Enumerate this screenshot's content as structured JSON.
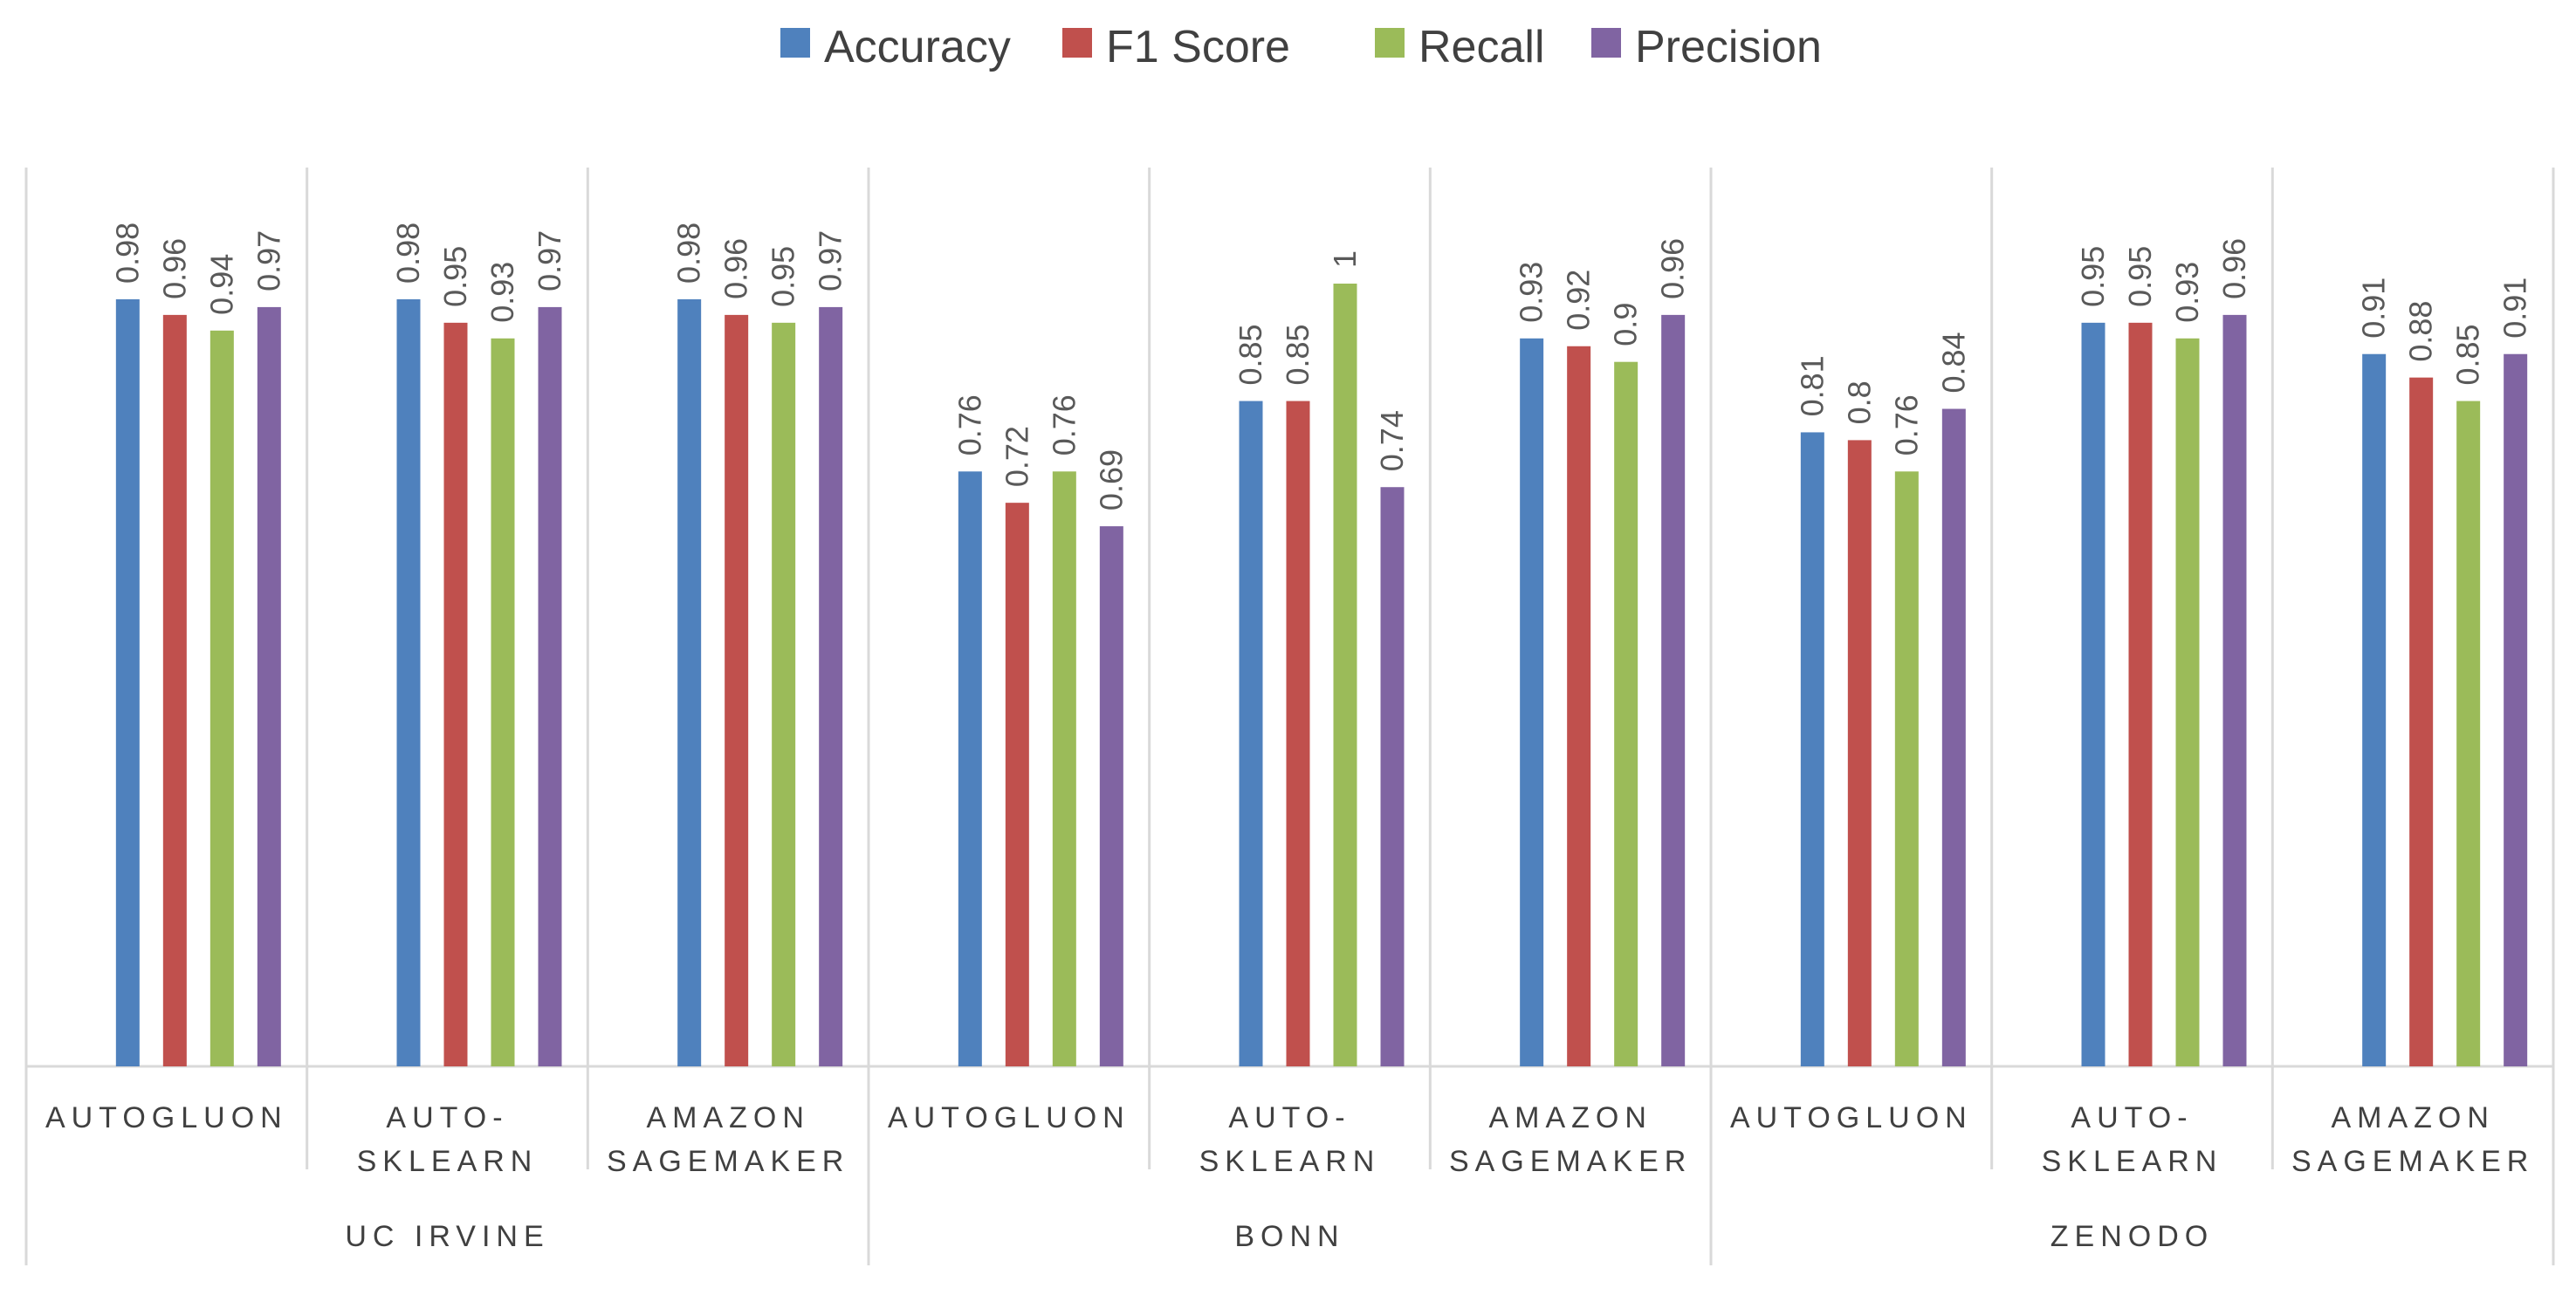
{
  "chart_data": {
    "type": "bar",
    "series": [
      {
        "name": "Accuracy",
        "color": "#4f81bd"
      },
      {
        "name": "F1 Score",
        "color": "#c0504d"
      },
      {
        "name": "Recall",
        "color": "#9bbb59"
      },
      {
        "name": "Precision",
        "color": "#8064a2"
      }
    ],
    "groups": [
      {
        "name": "UC IRVINE",
        "categories": [
          {
            "label": [
              "AUTOGLUON"
            ],
            "values": [
              0.98,
              0.96,
              0.94,
              0.97
            ],
            "labels": [
              "0.98",
              "0.96",
              "0.94",
              "0.97"
            ]
          },
          {
            "label": [
              "AUTO-",
              "SKLEARN"
            ],
            "values": [
              0.98,
              0.95,
              0.93,
              0.97
            ],
            "labels": [
              "0.98",
              "0.95",
              "0.93",
              "0.97"
            ]
          },
          {
            "label": [
              "AMAZON",
              "SAGEMAKER"
            ],
            "values": [
              0.98,
              0.96,
              0.95,
              0.97
            ],
            "labels": [
              "0.98",
              "0.96",
              "0.95",
              "0.97"
            ]
          }
        ]
      },
      {
        "name": "BONN",
        "categories": [
          {
            "label": [
              "AUTOGLUON"
            ],
            "values": [
              0.76,
              0.72,
              0.76,
              0.69
            ],
            "labels": [
              "0.76",
              "0.72",
              "0.76",
              "0.69"
            ]
          },
          {
            "label": [
              "AUTO-",
              "SKLEARN"
            ],
            "values": [
              0.85,
              0.85,
              1,
              0.74
            ],
            "labels": [
              "0.85",
              "0.85",
              "1",
              "0.74"
            ]
          },
          {
            "label": [
              "AMAZON",
              "SAGEMAKER"
            ],
            "values": [
              0.93,
              0.92,
              0.9,
              0.96
            ],
            "labels": [
              "0.93",
              "0.92",
              "0.9",
              "0.96"
            ]
          }
        ]
      },
      {
        "name": "ZENODO",
        "categories": [
          {
            "label": [
              "AUTOGLUON"
            ],
            "values": [
              0.81,
              0.8,
              0.76,
              0.84
            ],
            "labels": [
              "0.81",
              "0.8",
              "0.76",
              "0.84"
            ]
          },
          {
            "label": [
              "AUTO-",
              "SKLEARN"
            ],
            "values": [
              0.95,
              0.95,
              0.93,
              0.96
            ],
            "labels": [
              "0.95",
              "0.95",
              "0.93",
              "0.96"
            ]
          },
          {
            "label": [
              "AMAZON",
              "SAGEMAKER"
            ],
            "values": [
              0.91,
              0.88,
              0.85,
              0.91
            ],
            "labels": [
              "0.91",
              "0.88",
              "0.85",
              "0.91"
            ]
          }
        ]
      }
    ],
    "ylim": [
      0,
      1
    ],
    "grid": false,
    "legend_position": "top-center",
    "data_labels": "rotated-vertical"
  }
}
